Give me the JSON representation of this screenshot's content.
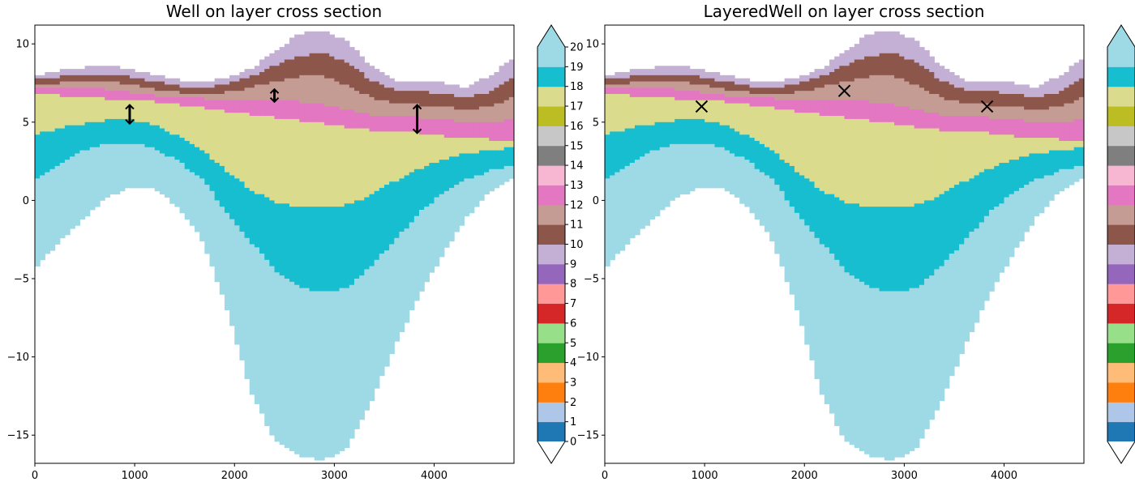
{
  "chart_data": [
    {
      "type": "heatmap",
      "title": "Well on layer cross section",
      "xlabel": "",
      "ylabel": "",
      "xlim": [
        0,
        4800
      ],
      "ylim": [
        -16.8,
        11.2
      ],
      "xticks": [
        "0",
        "1000",
        "2000",
        "3000",
        "4000"
      ],
      "yticks": [
        "−15",
        "−10",
        "−5",
        "0",
        "5",
        "10"
      ],
      "marker": "screen-segment",
      "wells": [
        {
          "x": 950,
          "top": 6.1,
          "bottom": 4.9
        },
        {
          "x": 2400,
          "top": 7.1,
          "bottom": 6.3
        },
        {
          "x": 3830,
          "top": 6.1,
          "bottom": 4.3
        }
      ]
    },
    {
      "type": "heatmap",
      "title": "LayeredWell on layer cross section",
      "xlabel": "",
      "ylabel": "",
      "xlim": [
        0,
        4800
      ],
      "ylim": [
        -16.8,
        11.2
      ],
      "xticks": [
        "0",
        "1000",
        "2000",
        "3000",
        "4000"
      ],
      "yticks": [
        "−15",
        "−10",
        "−5",
        "0",
        "5",
        "10"
      ],
      "marker": "x",
      "wells": [
        {
          "x": 970,
          "y": 6.0
        },
        {
          "x": 2400,
          "y": 7.0
        },
        {
          "x": 3830,
          "y": 6.0
        }
      ]
    }
  ],
  "colorbar": {
    "levels": [
      "0",
      "1",
      "2",
      "3",
      "4",
      "5",
      "6",
      "7",
      "8",
      "9",
      "10",
      "11",
      "12",
      "13",
      "14",
      "15",
      "16",
      "17",
      "18",
      "19",
      "20"
    ],
    "colors": [
      "#1f77b4",
      "#aec7e8",
      "#ff7f0e",
      "#ffbb78",
      "#2ca02c",
      "#98df8a",
      "#d62728",
      "#ff9896",
      "#9467bd",
      "#c5b0d5",
      "#8c564b",
      "#c49c94",
      "#e377c2",
      "#f7b6d2",
      "#7f7f7f",
      "#c7c7c7",
      "#bcbd22",
      "#dbdb8d",
      "#17becf",
      "#9edae5"
    ],
    "under_color": "#ffffff",
    "over_color": "#9edae5"
  },
  "cross_section": {
    "x": [
      0,
      240,
      480,
      720,
      960,
      1200,
      1440,
      1680,
      1920,
      2160,
      2400,
      2640,
      2880,
      3120,
      3360,
      3600,
      3840,
      4080,
      4320,
      4560,
      4800
    ],
    "layer_bands": [
      {
        "layer": 9,
        "top": [
          7.9,
          8.3,
          8.5,
          8.6,
          8.4,
          8.0,
          7.7,
          7.6,
          7.8,
          8.4,
          9.5,
          10.6,
          10.9,
          10.2,
          8.6,
          7.6,
          7.6,
          7.5,
          7.2,
          8.0,
          9.1
        ]
      },
      {
        "layer": 10,
        "top": [
          7.7,
          7.9,
          8.0,
          8.1,
          7.9,
          7.6,
          7.3,
          7.2,
          7.4,
          7.9,
          8.6,
          9.2,
          9.4,
          8.9,
          7.7,
          7.1,
          7.0,
          6.8,
          6.6,
          6.9,
          7.8
        ]
      },
      {
        "layer": 11,
        "top": [
          7.4,
          7.5,
          7.6,
          7.6,
          7.4,
          7.1,
          6.9,
          6.8,
          6.9,
          7.2,
          7.6,
          7.9,
          7.9,
          7.4,
          6.6,
          6.2,
          6.1,
          6.0,
          5.8,
          6.0,
          6.6
        ]
      },
      {
        "layer": 12,
        "top": [
          7.1,
          7.1,
          7.1,
          7.1,
          6.9,
          6.7,
          6.6,
          6.5,
          6.4,
          6.4,
          6.4,
          6.3,
          6.1,
          5.8,
          5.5,
          5.4,
          5.3,
          5.2,
          5.0,
          5.0,
          5.2
        ]
      },
      {
        "layer": 17,
        "top": [
          6.8,
          6.7,
          6.6,
          6.5,
          6.4,
          6.3,
          6.1,
          5.9,
          5.7,
          5.5,
          5.3,
          5.1,
          4.9,
          4.7,
          4.5,
          4.4,
          4.3,
          4.1,
          4.0,
          3.9,
          3.8
        ]
      },
      {
        "layer": 18,
        "top": [
          4.2,
          4.6,
          4.9,
          5.1,
          5.2,
          4.8,
          4.1,
          3.2,
          1.9,
          0.7,
          -0.1,
          -0.4,
          -0.5,
          -0.3,
          0.3,
          1.2,
          2.0,
          2.6,
          3.0,
          3.2,
          3.4
        ]
      },
      {
        "layer": 19,
        "top": [
          1.3,
          2.3,
          3.2,
          3.6,
          3.7,
          3.3,
          2.5,
          1.3,
          -0.7,
          -2.6,
          -4.4,
          -5.5,
          -5.9,
          -5.6,
          -4.3,
          -2.6,
          -0.9,
          0.5,
          1.3,
          1.9,
          2.2
        ]
      }
    ],
    "bottom": [
      -4.3,
      -2.7,
      -1.2,
      0.2,
      0.8,
      0.7,
      -0.4,
      -2.6,
      -6.8,
      -12.2,
      -15.3,
      -16.3,
      -16.6,
      -15.9,
      -13.0,
      -9.4,
      -6.2,
      -3.5,
      -1.1,
      0.6,
      1.6
    ]
  }
}
